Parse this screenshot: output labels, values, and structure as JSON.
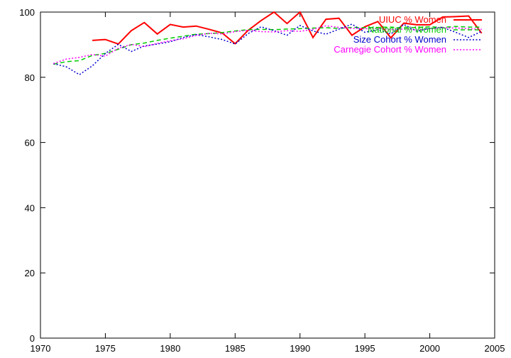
{
  "chart_data": {
    "type": "line",
    "title": "",
    "xlabel": "",
    "ylabel": "",
    "xlim": [
      1970,
      2005
    ],
    "ylim": [
      0,
      100
    ],
    "x_ticks": [
      1970,
      1975,
      1980,
      1985,
      1990,
      1995,
      2000,
      2005
    ],
    "y_ticks": [
      0,
      20,
      40,
      60,
      80,
      100
    ],
    "grid": false,
    "legend_position": "top-right",
    "series": [
      {
        "name": "UIUC % Women",
        "color": "#ff0000",
        "dash": "solid",
        "x": [
          1974,
          1975,
          1976,
          1977,
          1978,
          1979,
          1980,
          1981,
          1982,
          1983,
          1984,
          1985,
          1986,
          1987,
          1988,
          1989,
          1990,
          1991,
          1992,
          1993,
          1994,
          1995,
          1996,
          1997,
          1998,
          1999,
          2000,
          2001,
          2002,
          2003,
          2004
        ],
        "values": [
          91.3,
          91.6,
          90.2,
          94.3,
          96.8,
          93.3,
          96.2,
          95.4,
          95.7,
          94.7,
          93.6,
          90.3,
          94.4,
          97.4,
          100,
          96.5,
          100,
          92.2,
          97.8,
          98.1,
          92.9,
          95.5,
          97.1,
          92.1,
          96.6,
          96.1,
          96.1,
          98.5,
          98.6,
          98.8,
          93.5
        ]
      },
      {
        "name": "National % Women",
        "color": "#00cc00",
        "dash": "dashed",
        "x": [
          1971,
          1972,
          1973,
          1974,
          1975,
          1976,
          1977,
          1978,
          1979,
          1980,
          1981,
          1982,
          1983,
          1984,
          1985,
          1986,
          1987,
          1988,
          1989,
          1990,
          1991,
          1992,
          1993,
          1994,
          1995,
          1996,
          1997,
          1998,
          1999,
          2000,
          2001,
          2002,
          2003,
          2004
        ],
        "values": [
          84.0,
          84.8,
          85.1,
          86.7,
          87.3,
          88.6,
          90.0,
          90.5,
          91.3,
          92.0,
          92.6,
          93.2,
          93.4,
          93.7,
          94.2,
          94.6,
          94.7,
          94.6,
          94.8,
          94.9,
          95.1,
          95.2,
          95.0,
          95.3,
          95.2,
          95.3,
          95.4,
          95.1,
          95.3,
          95.5,
          95.3,
          95.6,
          95.4,
          95.4
        ]
      },
      {
        "name": "Size Cohort % Women",
        "color": "#0000cc",
        "dash": "dotted",
        "x": [
          1971,
          1972,
          1973,
          1974,
          1975,
          1976,
          1977,
          1978,
          1979,
          1980,
          1981,
          1982,
          1983,
          1984,
          1985,
          1986,
          1987,
          1988,
          1989,
          1990,
          1991,
          1992,
          1993,
          1994,
          1995,
          1996,
          1997,
          1998,
          1999,
          2000,
          2001,
          2002,
          2003,
          2004
        ],
        "values": [
          84.2,
          83.2,
          80.8,
          83.5,
          87.3,
          90.1,
          87.9,
          89.6,
          90.2,
          90.9,
          92.2,
          93.1,
          92.4,
          91.6,
          90.2,
          93.4,
          95.5,
          94.3,
          92.9,
          95.9,
          94.2,
          93.2,
          94.8,
          96.3,
          93.8,
          94.6,
          93.3,
          96.2,
          94.1,
          95.0,
          95.3,
          93.8,
          92.2,
          94.1
        ]
      },
      {
        "name": "Carnegie Cohort % Women",
        "color": "#ff00ff",
        "dash": "dotted",
        "x": [
          1971,
          1972,
          1973,
          1974,
          1975,
          1976,
          1977,
          1978,
          1979,
          1980,
          1981,
          1982,
          1983,
          1984,
          1985,
          1986,
          1987,
          1988,
          1989,
          1990,
          1991,
          1992,
          1993,
          1994,
          1995,
          1996,
          1997,
          1998,
          1999,
          2000,
          2001,
          2002,
          2003,
          2004
        ],
        "values": [
          84.2,
          85.6,
          86.1,
          87.0,
          86.5,
          88.9,
          90.1,
          89.4,
          90.4,
          91.2,
          91.8,
          92.8,
          93.5,
          93.3,
          94.0,
          94.4,
          94.0,
          93.9,
          94.3,
          94.1,
          94.7,
          95.8,
          95.3,
          95.0,
          94.9,
          95.0,
          94.6,
          94.8,
          94.5,
          94.9,
          95.2,
          95.1,
          94.9,
          94.7
        ]
      }
    ]
  }
}
